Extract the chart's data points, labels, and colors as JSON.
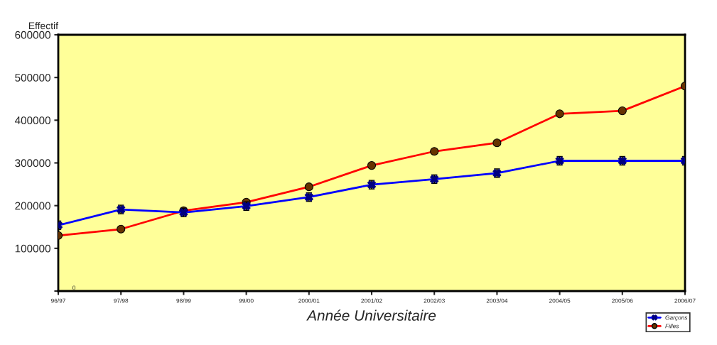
{
  "chart_data": {
    "type": "line",
    "xlabel": "Année Universitaire",
    "ylabel": "Effectif",
    "categories": [
      "96/97",
      "97/98",
      "98/99",
      "99/00",
      "2000/01",
      "2001/02",
      "2002/03",
      "2003/04",
      "2004/05",
      "2005/06",
      "2006/07"
    ],
    "series": [
      {
        "name": "Garçons",
        "color": "#0000ff",
        "marker": "cross",
        "values": [
          154000,
          191000,
          184000,
          199000,
          220000,
          249000,
          262000,
          276000,
          305000,
          305000,
          305000
        ],
        "errors": [
          10000,
          10000,
          10000,
          10000,
          10000,
          10000,
          10000,
          10000,
          10000,
          10000,
          10000
        ]
      },
      {
        "name": "Filles",
        "color": "#ff0000",
        "marker": "circle",
        "values": [
          130000,
          145000,
          188000,
          208000,
          244000,
          294000,
          327000,
          347000,
          415000,
          422000,
          480000
        ]
      }
    ],
    "ylim": [
      0,
      600000
    ],
    "yticks": [
      {
        "value": 0,
        "label": null
      },
      100000,
      200000,
      300000,
      400000,
      500000,
      600000
    ],
    "annotations": [
      "0"
    ],
    "grid": false,
    "legend": "bottom right",
    "line_style": "solid"
  }
}
